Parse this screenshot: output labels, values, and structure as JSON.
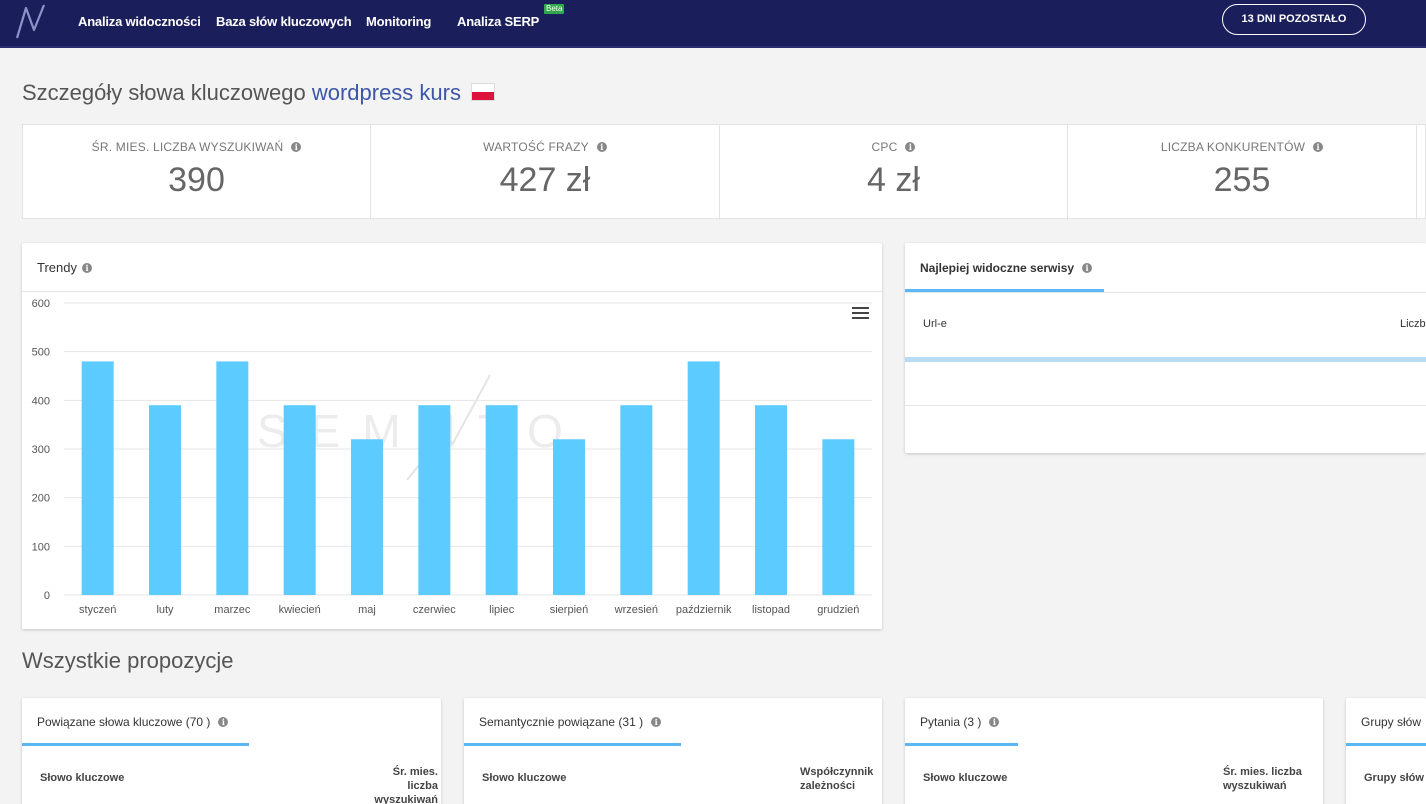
{
  "nav": {
    "items": [
      "Analiza widoczności",
      "Baza słów kluczowych",
      "Monitoring",
      "Analiza SERP"
    ],
    "beta": "Beta",
    "days_left": "13 DNI POZOSTAŁO"
  },
  "header": {
    "title_prefix": "Szczegóły słowa kluczowego",
    "keyword": "wordpress kurs"
  },
  "stats": [
    {
      "label": "ŚR. MIES. LICZBA WYSZUKIWAŃ",
      "value": "390"
    },
    {
      "label": "WARTOŚĆ FRAZY",
      "value": "427 zł"
    },
    {
      "label": "CPC",
      "value": "4 zł"
    },
    {
      "label": "LICZBA KONKURENTÓW",
      "value": "255"
    }
  ],
  "trends": {
    "title": "Trendy",
    "watermark": "SEMUTO"
  },
  "visible_sites": {
    "title": "Najlepiej widoczne serwisy",
    "col_url": "Url-e",
    "col_count": "Liczb"
  },
  "proposals": {
    "title": "Wszystkie propozycje",
    "cards": [
      {
        "title": "Powiązane słowa kluczowe",
        "count": "(70 )",
        "col1": "Słowo kluczowe",
        "col2a": "Śr. mies. liczba",
        "col2b": "wyszukiwań"
      },
      {
        "title": "Semantycznie powiązane",
        "count": "(31 )",
        "col1": "Słowo kluczowe",
        "col2a": "Współczynnik",
        "col2b": "zależności"
      },
      {
        "title": "Pytania",
        "count": "(3 )",
        "col1": "Słowo kluczowe",
        "col2a": "Śr. mies. liczba",
        "col2b": "wyszukiwań"
      },
      {
        "title": "Grupy słów",
        "count": "",
        "col1": "Grupy słów",
        "col2a": "",
        "col2b": ""
      }
    ]
  },
  "chart_data": {
    "type": "bar",
    "categories": [
      "styczeń",
      "luty",
      "marzec",
      "kwiecień",
      "maj",
      "czerwiec",
      "lipiec",
      "sierpień",
      "wrzesień",
      "październik",
      "listopad",
      "grudzień"
    ],
    "values": [
      480,
      390,
      480,
      390,
      320,
      390,
      390,
      320,
      390,
      480,
      390,
      320
    ],
    "ylim": [
      0,
      600
    ],
    "yticks": [
      0,
      100,
      200,
      300,
      400,
      500,
      600
    ],
    "grid": true,
    "bar_color": "#5ccbff"
  },
  "colors": {
    "nav_bg": "#1a1f5c",
    "accent": "#3d57a8",
    "tab_underline": "#5bb7f5"
  }
}
